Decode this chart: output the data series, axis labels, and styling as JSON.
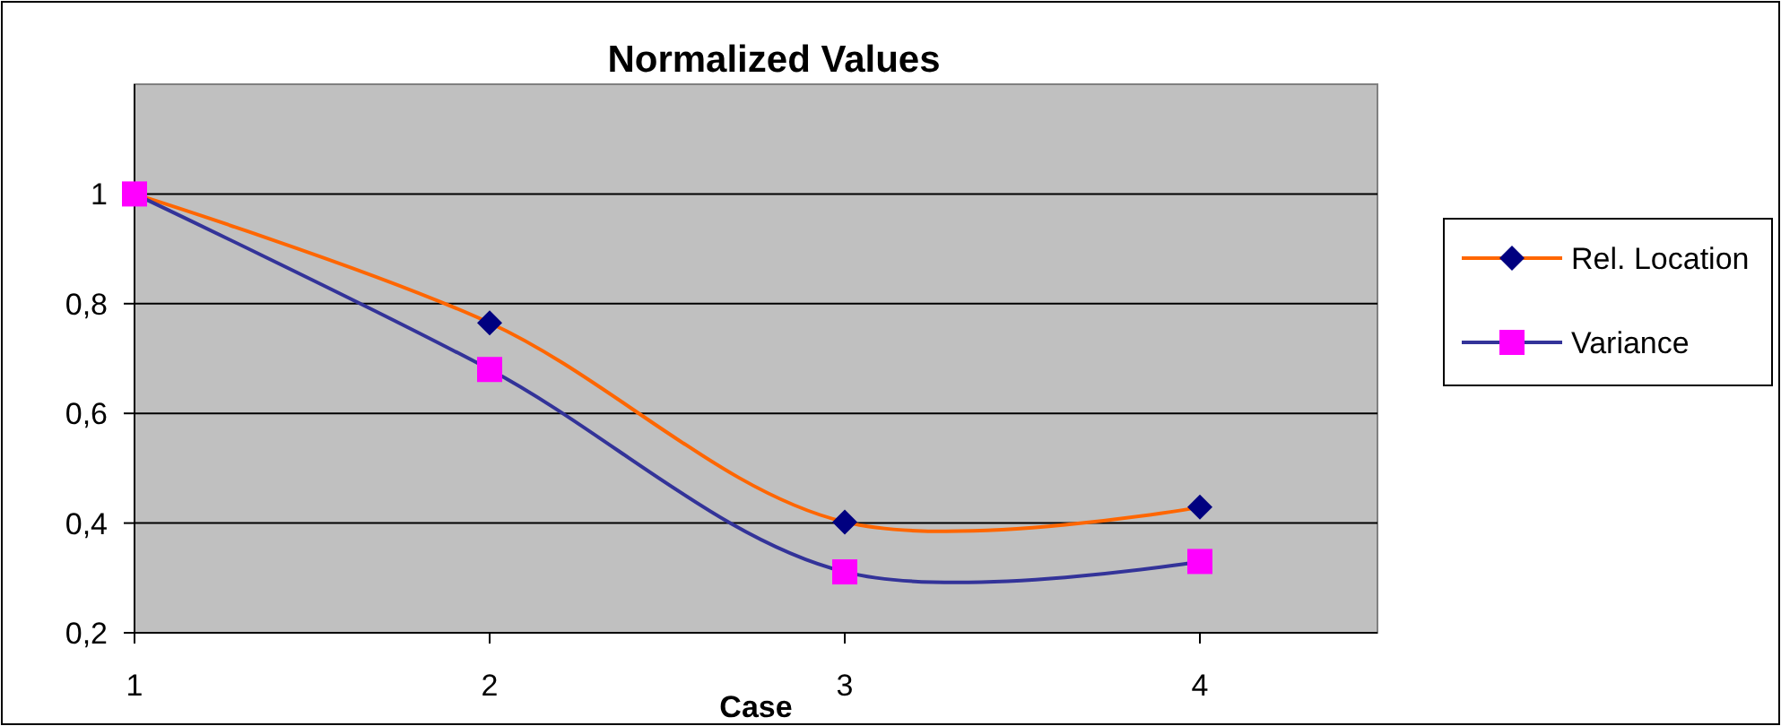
{
  "chart_data": {
    "type": "line",
    "title": "Normalized Values",
    "xlabel": "Case",
    "x": [
      1,
      2,
      3,
      4
    ],
    "series": [
      {
        "name": "Rel. Location",
        "color": "#ff6600",
        "colors": [
          "#000080",
          "#000080",
          "#000080",
          "#000080"
        ],
        "marker": "diamond",
        "values": [
          1,
          0.765,
          0.402,
          0.429
        ]
      },
      {
        "name": "Variance",
        "color": "#333399",
        "colors": [
          "#ff00ff",
          "#ff00ff",
          "#ff00ff",
          "#ff00ff"
        ],
        "marker": "square",
        "values": [
          1,
          0.68,
          0.311,
          0.33
        ]
      }
    ],
    "xlim": [
      1,
      4.5
    ],
    "xticks": [
      1,
      2,
      3,
      4
    ],
    "ylim": [
      0.2,
      1.2
    ],
    "yticks": [
      {
        "value": 0.2,
        "label": "0,2"
      },
      {
        "value": 0.4,
        "label": "0,4"
      },
      {
        "value": 0.6,
        "label": "0,6"
      },
      {
        "value": 0.8,
        "label": "0,8"
      },
      {
        "value": 1,
        "label": "1"
      }
    ],
    "grid": "y",
    "legend": "right",
    "line_style": "solid"
  }
}
